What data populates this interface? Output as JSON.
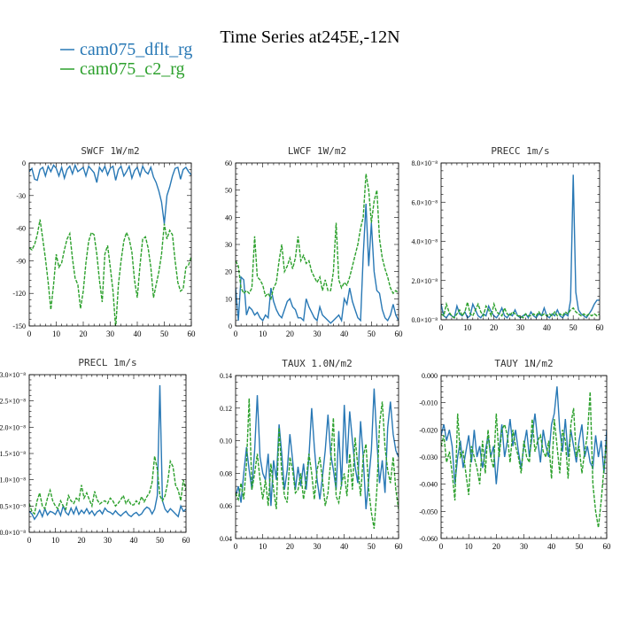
{
  "figure": {
    "title": "Time Series at245E,-12N"
  },
  "colors": {
    "series1": "#2878b5",
    "series2": "#2ca02c"
  },
  "legend": [
    {
      "label": "cam075_dflt_rg",
      "color": "#2878b5"
    },
    {
      "label": "cam075_c2_rg",
      "color": "#2ca02c"
    }
  ],
  "chart_data": [
    {
      "type": "line",
      "title": "SWCF   1W/m2",
      "xlim": [
        0,
        60
      ],
      "ylim": [
        -150,
        0
      ],
      "xticks": [
        0,
        10,
        20,
        30,
        40,
        50,
        60
      ],
      "yticks": [
        0,
        -30,
        -60,
        -90,
        -120,
        -150
      ],
      "ytick_labels": [
        "0",
        "-30",
        "-60",
        "-90",
        "-120",
        "-150"
      ],
      "series": [
        {
          "name": "cam075_dflt_rg",
          "color": "#2878b5",
          "dash": false,
          "values": [
            -8,
            -5,
            -15,
            -16,
            -6,
            -4,
            -12,
            -3,
            -8,
            -2,
            -5,
            -12,
            -4,
            -14,
            -6,
            -3,
            -10,
            -2,
            -8,
            -6,
            -4,
            -12,
            -3,
            -6,
            -9,
            -18,
            -4,
            -8,
            -3,
            -11,
            -5,
            -3,
            -16,
            -6,
            -3,
            -12,
            -8,
            -3,
            -14,
            -7,
            -4,
            -12,
            -3,
            -8,
            -10,
            -4,
            -13,
            -18,
            -26,
            -36,
            -56,
            -30,
            -22,
            -12,
            -5,
            -4,
            -15,
            -6,
            -4,
            -8,
            -11
          ]
        },
        {
          "name": "cam075_c2_rg",
          "color": "#2ca02c",
          "dash": true,
          "values": [
            -78,
            -80,
            -75,
            -66,
            -52,
            -70,
            -88,
            -110,
            -135,
            -112,
            -84,
            -96,
            -92,
            -80,
            -70,
            -65,
            -88,
            -106,
            -112,
            -134,
            -118,
            -92,
            -72,
            -64,
            -66,
            -84,
            -108,
            -128,
            -84,
            -76,
            -96,
            -118,
            -152,
            -112,
            -90,
            -72,
            -64,
            -70,
            -82,
            -108,
            -124,
            -94,
            -70,
            -68,
            -78,
            -96,
            -124,
            -112,
            -100,
            -84,
            -56,
            -70,
            -62,
            -66,
            -90,
            -110,
            -118,
            -116,
            -96,
            -94,
            -86
          ]
        }
      ]
    },
    {
      "type": "line",
      "title": "LWCF   1W/m2",
      "xlim": [
        0,
        60
      ],
      "ylim": [
        0,
        60
      ],
      "xticks": [
        0,
        10,
        20,
        30,
        40,
        50,
        60
      ],
      "yticks": [
        0,
        10,
        20,
        30,
        40,
        50,
        60
      ],
      "ytick_labels": [
        "0",
        "10",
        "20",
        "30",
        "40",
        "50",
        "60"
      ],
      "series": [
        {
          "name": "cam075_dflt_rg",
          "color": "#2878b5",
          "dash": false,
          "values": [
            14,
            2,
            18,
            17,
            4,
            7,
            6,
            4,
            5,
            3,
            2,
            4,
            3,
            14,
            9,
            6,
            4,
            3,
            6,
            9,
            10,
            7,
            6,
            3,
            3,
            2,
            10,
            7,
            5,
            3,
            2,
            7,
            4,
            3,
            2,
            1,
            2,
            3,
            4,
            2,
            10,
            8,
            14,
            9,
            6,
            3,
            2,
            26,
            45,
            22,
            38,
            20,
            13,
            12,
            6,
            3,
            2,
            4,
            8,
            4,
            2
          ]
        },
        {
          "name": "cam075_c2_rg",
          "color": "#2ca02c",
          "dash": true,
          "values": [
            24,
            22,
            14,
            12,
            13,
            12,
            14,
            33,
            18,
            17,
            15,
            11,
            12,
            10,
            14,
            16,
            24,
            30,
            20,
            22,
            25,
            21,
            25,
            33,
            24,
            26,
            23,
            24,
            20,
            18,
            16,
            18,
            13,
            17,
            13,
            13,
            20,
            38,
            17,
            14,
            16,
            15,
            18,
            22,
            26,
            30,
            36,
            40,
            56,
            50,
            38,
            46,
            50,
            32,
            25,
            21,
            18,
            14,
            12,
            13,
            12
          ]
        }
      ]
    },
    {
      "type": "line",
      "title": "PRECC   1m/s",
      "xlim": [
        0,
        60
      ],
      "ylim": [
        0,
        8e-08
      ],
      "xticks": [
        0,
        10,
        20,
        30,
        40,
        50,
        60
      ],
      "yticks": [
        0,
        2e-08,
        4e-08,
        6e-08,
        8e-08
      ],
      "ytick_labels": [
        "0.0×10⁻⁸",
        "2.0×10⁻⁸",
        "4.0×10⁻⁸",
        "6.0×10⁻⁸",
        "8.0×10⁻⁸"
      ],
      "series": [
        {
          "name": "cam075_dflt_rg",
          "color": "#2878b5",
          "dash": false,
          "values": [
            8e-09,
            2e-09,
            1e-09,
            3e-09,
            2e-09,
            1e-09,
            7e-09,
            3e-09,
            2e-09,
            4e-09,
            1e-09,
            2e-09,
            8e-09,
            5e-09,
            2e-09,
            1e-09,
            3e-09,
            2e-09,
            7e-09,
            4e-09,
            2e-09,
            1e-09,
            3e-09,
            6e-09,
            2e-09,
            1e-09,
            3e-09,
            2e-09,
            5e-09,
            2e-09,
            1e-09,
            2e-09,
            3e-09,
            1e-09,
            4e-09,
            2e-09,
            1e-09,
            3e-09,
            2e-09,
            6e-09,
            2e-09,
            1e-09,
            3e-09,
            2e-09,
            5e-09,
            2e-09,
            1e-09,
            3e-09,
            2e-09,
            1e-08,
            7.4e-08,
            1.4e-08,
            5e-09,
            3e-09,
            2e-09,
            1e-09,
            3e-09,
            5e-09,
            8e-09,
            1e-08,
            1e-08
          ]
        },
        {
          "name": "cam075_c2_rg",
          "color": "#2ca02c",
          "dash": true,
          "values": [
            3e-09,
            2e-09,
            8e-09,
            4e-09,
            2e-09,
            1e-09,
            3e-09,
            5e-09,
            2e-09,
            4e-09,
            9e-09,
            3e-09,
            2e-09,
            5e-09,
            8e-09,
            4e-09,
            2e-09,
            7e-09,
            5e-09,
            2e-09,
            8e-09,
            4e-09,
            3e-09,
            2e-09,
            6e-09,
            3e-09,
            2e-09,
            4e-09,
            3e-09,
            2e-09,
            2e-09,
            1e-09,
            3e-09,
            2e-09,
            2e-09,
            3e-09,
            2e-09,
            4e-09,
            2e-09,
            3e-09,
            2e-09,
            3e-09,
            2e-09,
            4e-09,
            2e-09,
            3e-09,
            2e-09,
            4e-09,
            3e-09,
            5e-09,
            6e-09,
            4e-09,
            3e-09,
            2e-09,
            3e-09,
            2e-09,
            3e-09,
            2e-09,
            3e-09,
            2e-09,
            3e-09
          ]
        }
      ]
    },
    {
      "type": "line",
      "title": "PRECL   1m/s",
      "xlim": [
        0,
        60
      ],
      "ylim": [
        0,
        3e-08
      ],
      "xticks": [
        0,
        10,
        20,
        30,
        40,
        50,
        60
      ],
      "yticks": [
        0,
        5e-09,
        1e-08,
        1.5e-08,
        2e-08,
        2.5e-08,
        3e-08
      ],
      "ytick_labels": [
        "0.0×10⁻⁸",
        "0.5×10⁻⁸",
        "1.0×10⁻⁸",
        "1.5×10⁻⁸",
        "2.0×10⁻⁸",
        "2.5×10⁻⁸",
        "3.0×10⁻⁸"
      ],
      "series": [
        {
          "name": "cam075_dflt_rg",
          "color": "#2878b5",
          "dash": false,
          "values": [
            4e-09,
            3.5e-09,
            2.5e-09,
            3.2e-09,
            4.2e-09,
            3e-09,
            4.5e-09,
            3.3e-09,
            4e-09,
            3.8e-09,
            3.4e-09,
            4.4e-09,
            3.2e-09,
            5e-09,
            3.8e-09,
            3.3e-09,
            4.6e-09,
            3.5e-09,
            4.8e-09,
            3.4e-09,
            4.2e-09,
            3.6e-09,
            4.5e-09,
            3.5e-09,
            4.1e-09,
            3.2e-09,
            3.9e-09,
            4.2e-09,
            3.5e-09,
            4.6e-09,
            4e-09,
            3.8e-09,
            3.4e-09,
            4.1e-09,
            3.5e-09,
            3.1e-09,
            3.6e-09,
            4e-09,
            3.3e-09,
            3e-09,
            3.5e-09,
            3.8e-09,
            3.2e-09,
            3.5e-09,
            4.3e-09,
            4.8e-09,
            4.5e-09,
            3.5e-09,
            4.4e-09,
            7e-09,
            2.8e-08,
            6e-09,
            4.4e-09,
            3.8e-09,
            4.5e-09,
            4e-09,
            3.5e-09,
            3e-09,
            5e-09,
            4e-09,
            4.4e-09
          ]
        },
        {
          "name": "cam075_c2_rg",
          "color": "#2ca02c",
          "dash": true,
          "values": [
            5.5e-09,
            4e-09,
            3.5e-09,
            6e-09,
            7.5e-09,
            5e-09,
            4.5e-09,
            6.5e-09,
            8e-09,
            6e-09,
            5e-09,
            4.5e-09,
            6e-09,
            5e-09,
            4.4e-09,
            7e-09,
            6e-09,
            5.5e-09,
            6.5e-09,
            6e-09,
            9e-09,
            6.5e-09,
            7.5e-09,
            6.2e-09,
            5e-09,
            7.8e-09,
            6.2e-09,
            5.4e-09,
            5.8e-09,
            6e-09,
            5.5e-09,
            6.5e-09,
            6e-09,
            5e-09,
            5.5e-09,
            6.2e-09,
            7e-09,
            5.5e-09,
            6.2e-09,
            5.2e-09,
            5.2e-09,
            6e-09,
            5.4e-09,
            6.8e-09,
            5.8e-09,
            6.8e-09,
            7.5e-09,
            9.5e-09,
            1.45e-08,
            1.2e-08,
            7e-09,
            6e-09,
            7e-09,
            9.5e-09,
            1.35e-08,
            1.25e-08,
            9e-09,
            8e-09,
            6e-09,
            1e-08,
            8e-09
          ]
        }
      ]
    },
    {
      "type": "line",
      "title": "TAUX   1.0N/m2",
      "xlim": [
        0,
        60
      ],
      "ylim": [
        0.04,
        0.14
      ],
      "xticks": [
        0,
        10,
        20,
        30,
        40,
        50,
        60
      ],
      "yticks": [
        0.04,
        0.06,
        0.08,
        0.1,
        0.12,
        0.14
      ],
      "ytick_labels": [
        "0.04",
        "0.06",
        "0.08",
        "0.10",
        "0.12",
        "0.14"
      ],
      "series": [
        {
          "name": "cam075_dflt_rg",
          "color": "#2878b5",
          "dash": false,
          "values": [
            0.066,
            0.072,
            0.062,
            0.08,
            0.096,
            0.082,
            0.07,
            0.094,
            0.128,
            0.09,
            0.08,
            0.076,
            0.092,
            0.06,
            0.088,
            0.076,
            0.11,
            0.092,
            0.07,
            0.082,
            0.104,
            0.088,
            0.07,
            0.084,
            0.072,
            0.086,
            0.07,
            0.09,
            0.12,
            0.096,
            0.076,
            0.064,
            0.078,
            0.094,
            0.116,
            0.092,
            0.082,
            0.07,
            0.106,
            0.072,
            0.122,
            0.086,
            0.118,
            0.1,
            0.084,
            0.074,
            0.112,
            0.09,
            0.058,
            0.076,
            0.094,
            0.132,
            0.1,
            0.074,
            0.088,
            0.068,
            0.108,
            0.124,
            0.104,
            0.094,
            0.09
          ]
        },
        {
          "name": "cam075_c2_rg",
          "color": "#2ca02c",
          "dash": true,
          "values": [
            0.068,
            0.064,
            0.074,
            0.064,
            0.086,
            0.126,
            0.07,
            0.08,
            0.092,
            0.076,
            0.064,
            0.076,
            0.06,
            0.086,
            0.07,
            0.058,
            0.108,
            0.08,
            0.066,
            0.062,
            0.09,
            0.082,
            0.068,
            0.07,
            0.08,
            0.064,
            0.076,
            0.092,
            0.08,
            0.064,
            0.082,
            0.09,
            0.076,
            0.06,
            0.068,
            0.088,
            0.114,
            0.066,
            0.062,
            0.074,
            0.08,
            0.066,
            0.092,
            0.07,
            0.102,
            0.084,
            0.066,
            0.09,
            0.098,
            0.07,
            0.056,
            0.046,
            0.07,
            0.11,
            0.124,
            0.096,
            0.082,
            0.074,
            0.09,
            0.07,
            0.058
          ]
        }
      ]
    },
    {
      "type": "line",
      "title": "TAUY   1N/m2",
      "xlim": [
        0,
        60
      ],
      "ylim": [
        -0.06,
        0
      ],
      "xticks": [
        0,
        10,
        20,
        30,
        40,
        50,
        60
      ],
      "yticks": [
        0,
        -0.01,
        -0.02,
        -0.03,
        -0.04,
        -0.05,
        -0.06
      ],
      "ytick_labels": [
        "0.000",
        "-0.010",
        "-0.020",
        "-0.030",
        "-0.040",
        "-0.050",
        "-0.060"
      ],
      "series": [
        {
          "name": "cam075_dflt_rg",
          "color": "#2878b5",
          "dash": false,
          "values": [
            -0.022,
            -0.018,
            -0.024,
            -0.02,
            -0.026,
            -0.04,
            -0.03,
            -0.024,
            -0.034,
            -0.028,
            -0.022,
            -0.032,
            -0.02,
            -0.03,
            -0.026,
            -0.034,
            -0.028,
            -0.022,
            -0.03,
            -0.026,
            -0.04,
            -0.028,
            -0.018,
            -0.03,
            -0.024,
            -0.016,
            -0.026,
            -0.02,
            -0.028,
            -0.034,
            -0.026,
            -0.02,
            -0.03,
            -0.022,
            -0.014,
            -0.024,
            -0.032,
            -0.02,
            -0.026,
            -0.03,
            -0.018,
            -0.014,
            -0.004,
            -0.02,
            -0.028,
            -0.016,
            -0.03,
            -0.02,
            -0.026,
            -0.032,
            -0.024,
            -0.018,
            -0.03,
            -0.026,
            -0.032,
            -0.034,
            -0.022,
            -0.03,
            -0.024,
            -0.036,
            -0.02
          ]
        },
        {
          "name": "cam075_c2_rg",
          "color": "#2ca02c",
          "dash": true,
          "values": [
            -0.026,
            -0.022,
            -0.032,
            -0.028,
            -0.036,
            -0.046,
            -0.014,
            -0.03,
            -0.028,
            -0.036,
            -0.044,
            -0.026,
            -0.03,
            -0.034,
            -0.04,
            -0.024,
            -0.036,
            -0.02,
            -0.03,
            -0.034,
            -0.014,
            -0.03,
            -0.02,
            -0.018,
            -0.022,
            -0.032,
            -0.02,
            -0.026,
            -0.03,
            -0.036,
            -0.024,
            -0.03,
            -0.032,
            -0.016,
            -0.028,
            -0.024,
            -0.022,
            -0.028,
            -0.03,
            -0.024,
            -0.038,
            -0.016,
            -0.026,
            -0.036,
            -0.02,
            -0.024,
            -0.038,
            -0.018,
            -0.012,
            -0.03,
            -0.026,
            -0.036,
            -0.028,
            -0.022,
            -0.006,
            -0.04,
            -0.05,
            -0.056,
            -0.046,
            -0.034,
            -0.024
          ]
        }
      ]
    }
  ]
}
